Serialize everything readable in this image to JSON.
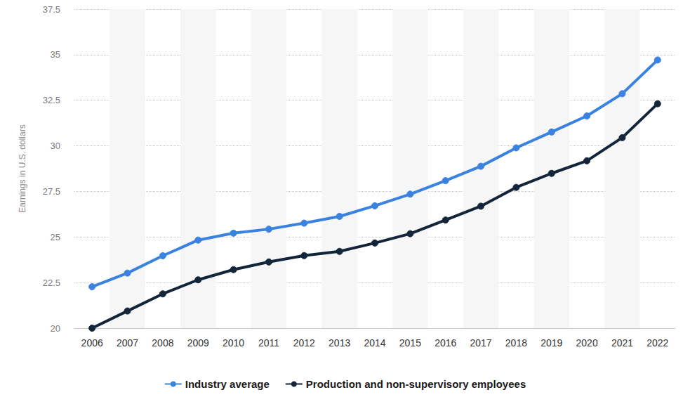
{
  "chart_data": {
    "type": "line",
    "y_label": "Earnings in U.S. dollars",
    "categories": [
      "2006",
      "2007",
      "2008",
      "2009",
      "2010",
      "2011",
      "2012",
      "2013",
      "2014",
      "2015",
      "2016",
      "2017",
      "2018",
      "2019",
      "2020",
      "2021",
      "2022"
    ],
    "series": [
      {
        "name": "Industry average",
        "color": "#3a82e0",
        "marker": "circle",
        "values": [
          22.27,
          23.02,
          23.97,
          24.83,
          25.21,
          25.43,
          25.76,
          26.13,
          26.71,
          27.35,
          28.09,
          28.88,
          29.89,
          30.76,
          31.64,
          32.86,
          34.71
        ]
      },
      {
        "name": "Production and non-supervisory employees",
        "color": "#12253a",
        "marker": "circle",
        "values": [
          20.0,
          20.94,
          21.88,
          22.65,
          23.21,
          23.63,
          23.98,
          24.21,
          24.67,
          25.18,
          25.93,
          26.69,
          27.72,
          28.49,
          29.18,
          30.45,
          32.31
        ]
      }
    ],
    "ylim": [
      20,
      37.5
    ],
    "yticks": [
      20,
      22.5,
      25,
      27.5,
      30,
      32.5,
      35,
      37.5
    ],
    "grid": true,
    "legend": "bottom"
  }
}
